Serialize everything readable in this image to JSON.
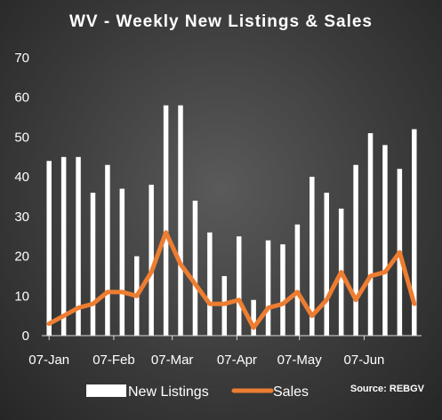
{
  "chart_data": {
    "type": "bar",
    "title": "WV - Weekly New Listings & Sales",
    "source_note": "Source: REBGV",
    "ylim": [
      0,
      70
    ],
    "yticks": [
      0,
      10,
      20,
      30,
      40,
      50,
      60,
      70
    ],
    "x_tick_labels": [
      {
        "label": "07-Jan",
        "week_index": 0
      },
      {
        "label": "07-Feb",
        "week_index": 4.43
      },
      {
        "label": "07-Mar",
        "week_index": 8.43
      },
      {
        "label": "07-Apr",
        "week_index": 12.86
      },
      {
        "label": "07-May",
        "week_index": 17.14
      },
      {
        "label": "07-Jun",
        "week_index": 21.57
      }
    ],
    "legend_position": "bottom",
    "grid": false,
    "series": [
      {
        "name": "New Listings",
        "type": "bar",
        "color": "#ffffff",
        "values": [
          44,
          45,
          45,
          36,
          43,
          37,
          20,
          38,
          58,
          58,
          34,
          26,
          15,
          25,
          9,
          24,
          23,
          28,
          40,
          36,
          32,
          43,
          51,
          48,
          42,
          52
        ]
      },
      {
        "name": "Sales",
        "type": "line",
        "color": "#ed7d31",
        "values": [
          3,
          5,
          7,
          8,
          11,
          11,
          10,
          16,
          26,
          18,
          13,
          8,
          8,
          9,
          2,
          7,
          8,
          11,
          5,
          9,
          16,
          9,
          15,
          16,
          21,
          8
        ]
      }
    ]
  }
}
